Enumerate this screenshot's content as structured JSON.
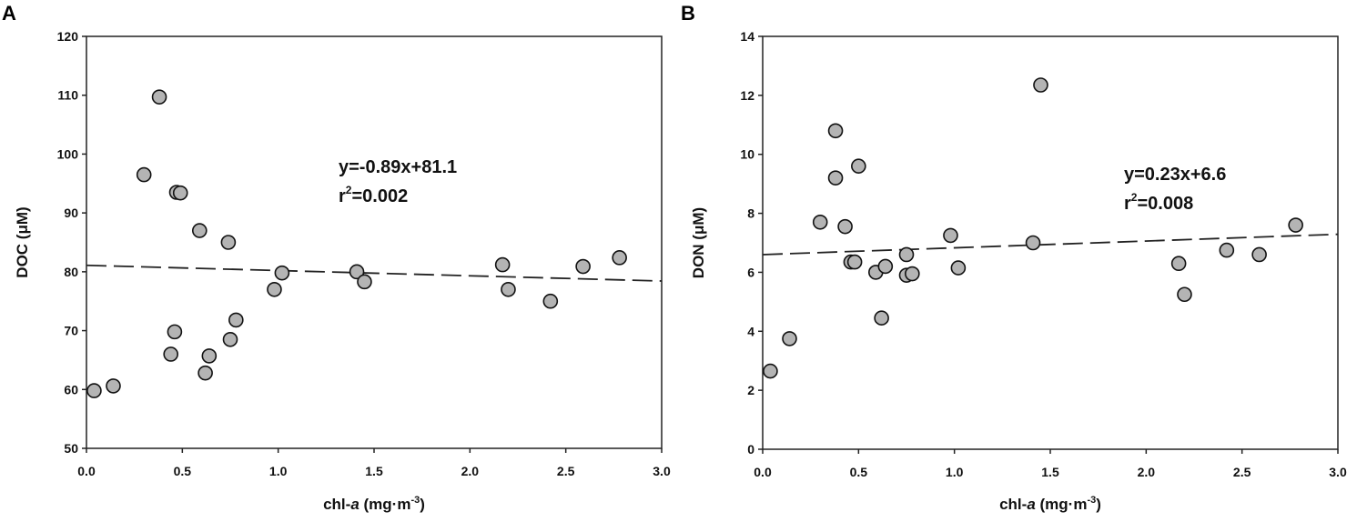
{
  "chart_data": [
    {
      "type": "scatter",
      "panel_label": "A",
      "xlabel_main": "chl-",
      "xlabel_italic": "a",
      "xlabel_units": " (mg·m",
      "xlabel_sup": "-3",
      "xlabel_close": ")",
      "ylabel": "DOC (μM)",
      "xlim": [
        0,
        3.0
      ],
      "ylim": [
        50,
        120
      ],
      "xticks": [
        "0.0",
        "0.5",
        "1.0",
        "1.5",
        "2.0",
        "2.5",
        "3.0"
      ],
      "yticks": [
        "50",
        "60",
        "70",
        "80",
        "90",
        "100",
        "110",
        "120"
      ],
      "equation": "y=-0.89x+81.1",
      "r2_prefix": "r",
      "r2_sup": "2",
      "r2_value": "=0.002",
      "fit": {
        "slope": -0.89,
        "intercept": 81.1,
        "style": "dashed"
      },
      "points": [
        [
          0.04,
          59.8
        ],
        [
          0.14,
          60.6
        ],
        [
          0.3,
          96.5
        ],
        [
          0.38,
          109.7
        ],
        [
          0.44,
          66.0
        ],
        [
          0.46,
          69.8
        ],
        [
          0.47,
          93.5
        ],
        [
          0.49,
          93.4
        ],
        [
          0.59,
          87.0
        ],
        [
          0.62,
          62.8
        ],
        [
          0.64,
          65.7
        ],
        [
          0.74,
          85.0
        ],
        [
          0.75,
          68.5
        ],
        [
          0.78,
          71.8
        ],
        [
          0.98,
          77.0
        ],
        [
          1.02,
          79.8
        ],
        [
          1.41,
          80.0
        ],
        [
          1.45,
          78.3
        ],
        [
          2.17,
          81.2
        ],
        [
          2.2,
          77.0
        ],
        [
          2.42,
          75.0
        ],
        [
          2.59,
          80.9
        ],
        [
          2.78,
          82.4
        ]
      ],
      "marker_color": "#b4b4b4"
    },
    {
      "type": "scatter",
      "panel_label": "B",
      "xlabel_main": "chl-",
      "xlabel_italic": "a",
      "xlabel_units": " (mg·m",
      "xlabel_sup": "-3",
      "xlabel_close": ")",
      "ylabel": "DON (μM)",
      "xlim": [
        0,
        3.0
      ],
      "ylim": [
        0,
        14
      ],
      "xticks": [
        "0.0",
        "0.5",
        "1.0",
        "1.5",
        "2.0",
        "2.5",
        "3.0"
      ],
      "yticks": [
        "0",
        "2",
        "4",
        "6",
        "8",
        "10",
        "12",
        "14"
      ],
      "equation": "y=0.23x+6.6",
      "r2_prefix": "r",
      "r2_sup": "2",
      "r2_value": "=0.008",
      "fit": {
        "slope": 0.23,
        "intercept": 6.6,
        "style": "dashed"
      },
      "points": [
        [
          0.04,
          2.65
        ],
        [
          0.14,
          3.75
        ],
        [
          0.3,
          7.7
        ],
        [
          0.38,
          10.8
        ],
        [
          0.38,
          9.2
        ],
        [
          0.43,
          7.55
        ],
        [
          0.46,
          6.35
        ],
        [
          0.48,
          6.35
        ],
        [
          0.5,
          9.6
        ],
        [
          0.59,
          6.0
        ],
        [
          0.62,
          4.45
        ],
        [
          0.64,
          6.2
        ],
        [
          0.75,
          6.6
        ],
        [
          0.75,
          5.9
        ],
        [
          0.78,
          5.95
        ],
        [
          0.98,
          7.25
        ],
        [
          1.02,
          6.15
        ],
        [
          1.41,
          7.0
        ],
        [
          1.45,
          12.35
        ],
        [
          2.17,
          6.3
        ],
        [
          2.2,
          5.25
        ],
        [
          2.42,
          6.75
        ],
        [
          2.59,
          6.6
        ],
        [
          2.78,
          7.6
        ]
      ],
      "marker_color": "#b4b4b4"
    }
  ]
}
